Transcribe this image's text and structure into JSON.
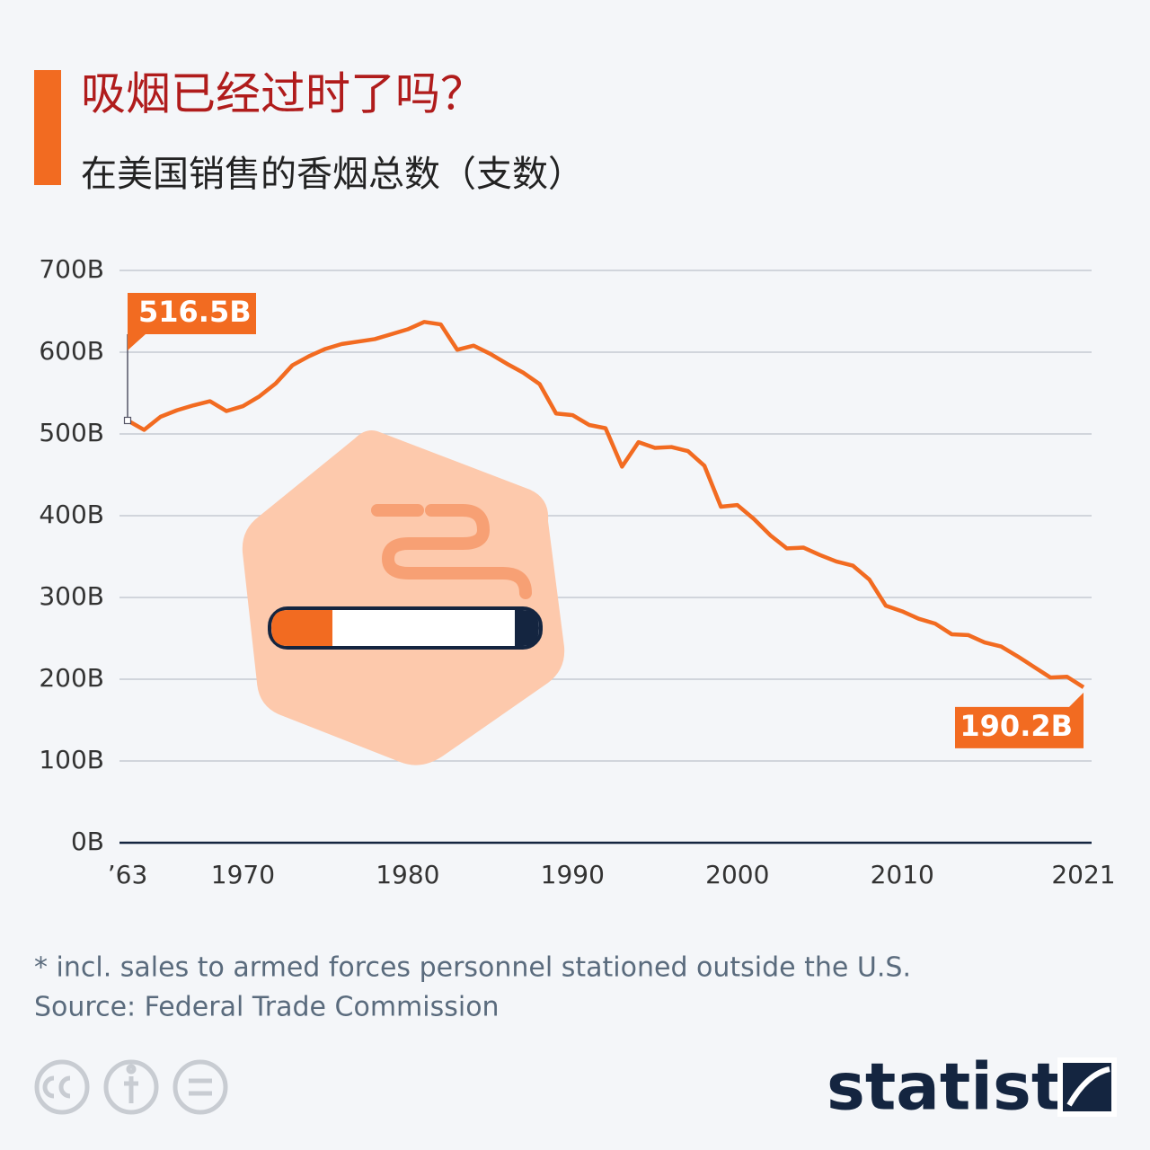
{
  "chart_data": {
    "type": "line",
    "title": "吸烟已经过时了吗？",
    "subtitle": "在美国销售的香烟总数（支数）",
    "x": [
      1963,
      1964,
      1965,
      1966,
      1967,
      1968,
      1969,
      1970,
      1971,
      1972,
      1973,
      1974,
      1975,
      1976,
      1977,
      1978,
      1979,
      1980,
      1981,
      1982,
      1983,
      1984,
      1985,
      1986,
      1987,
      1988,
      1989,
      1990,
      1991,
      1992,
      1993,
      1994,
      1995,
      1996,
      1997,
      1998,
      1999,
      2000,
      2001,
      2002,
      2003,
      2004,
      2005,
      2006,
      2007,
      2008,
      2009,
      2010,
      2011,
      2012,
      2013,
      2014,
      2015,
      2016,
      2017,
      2018,
      2019,
      2020,
      2021
    ],
    "series": [
      {
        "name": "Cigarettes sold",
        "color": "#f26b21",
        "values": [
          516.5,
          505,
          521,
          529,
          535,
          540,
          528,
          534,
          546,
          562,
          584,
          595,
          604,
          610,
          613,
          616,
          622,
          628,
          637,
          634,
          603,
          608,
          598,
          586,
          575,
          561,
          525,
          523,
          511,
          507,
          460,
          490,
          483,
          484,
          479,
          461,
          411,
          413,
          396,
          376,
          360,
          361,
          352,
          344,
          339,
          322,
          290,
          283,
          274,
          268,
          255,
          254,
          245,
          240,
          228,
          215,
          202,
          203,
          190.2
        ],
        "value_labels": [
          "516.5B",
          null,
          null,
          null,
          null,
          null,
          null,
          null,
          null,
          null,
          null,
          null,
          null,
          null,
          null,
          null,
          null,
          null,
          null,
          null,
          null,
          null,
          null,
          null,
          null,
          null,
          null,
          null,
          null,
          null,
          null,
          null,
          null,
          null,
          null,
          null,
          null,
          null,
          null,
          null,
          null,
          null,
          null,
          null,
          null,
          null,
          null,
          null,
          null,
          null,
          null,
          null,
          null,
          null,
          null,
          null,
          null,
          null,
          "190.2B"
        ]
      }
    ],
    "xlim": [
      1963,
      2021
    ],
    "xticks": [
      {
        "value": 1963,
        "label": "’63"
      },
      1970,
      1980,
      1990,
      2000,
      2010,
      2021
    ],
    "ylim": [
      0,
      700
    ],
    "yticks": [
      {
        "value": 0,
        "label": "0B"
      },
      {
        "value": 100,
        "label": "100B"
      },
      {
        "value": 200,
        "label": "200B"
      },
      {
        "value": 300,
        "label": "300B"
      },
      {
        "value": 400,
        "label": "400B"
      },
      {
        "value": 500,
        "label": "500B"
      },
      {
        "value": 600,
        "label": "600B"
      },
      {
        "value": 700,
        "label": "700B"
      }
    ],
    "grid": true,
    "footnote": "* incl. sales to armed forces personnel stationed outside the U.S.",
    "source": "Source: Federal Trade Commission",
    "brand": "statista"
  }
}
